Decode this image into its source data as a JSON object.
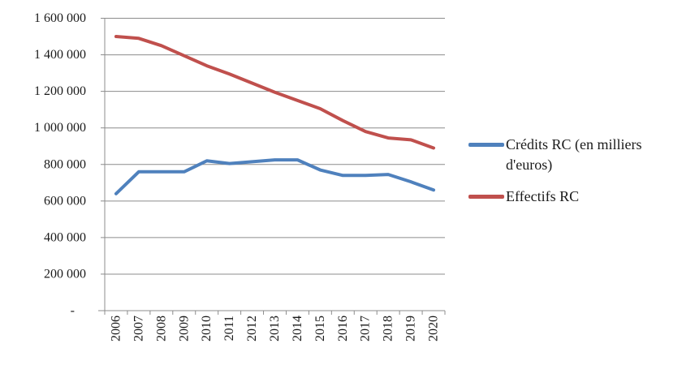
{
  "chart_data": {
    "type": "line",
    "title": "",
    "x_tick_labels": [
      "2006",
      "2007",
      "2008",
      "2009",
      "2010",
      "2011",
      "2012",
      "2013",
      "2014",
      "2015",
      "2016",
      "2017",
      "2018",
      "2019",
      "2020"
    ],
    "y_axis": {
      "min": 0,
      "max": 1600000,
      "step": 200000,
      "tick_labels": [
        "1 600 000",
        "1 400 000",
        "1 200 000",
        "1 000 000",
        "800 000",
        "600 000",
        "400 000",
        "200 000",
        "-"
      ]
    },
    "grid": true,
    "legend_position": "right",
    "series": [
      {
        "name": "Crédits RC (en milliers d'euros)",
        "color": "#4F81BD",
        "values": [
          640000,
          760000,
          760000,
          760000,
          820000,
          805000,
          815000,
          825000,
          825000,
          770000,
          740000,
          740000,
          745000,
          705000,
          660000
        ]
      },
      {
        "name": "Effectifs RC",
        "color": "#C0504D",
        "values": [
          1500000,
          1490000,
          1450000,
          1395000,
          1340000,
          1295000,
          1245000,
          1195000,
          1150000,
          1105000,
          1040000,
          980000,
          945000,
          935000,
          890000
        ]
      }
    ]
  },
  "legend": {
    "items": [
      {
        "label": "Crédits RC (en milliers d'euros)"
      },
      {
        "label": "Effectifs RC"
      }
    ]
  },
  "colors": {
    "background": "#FFFFFF",
    "gridline": "#8C8C8C",
    "axis": "#8C8C8C",
    "text": "#1A1A1A",
    "series_blue": "#4F81BD",
    "series_red": "#C0504D"
  }
}
